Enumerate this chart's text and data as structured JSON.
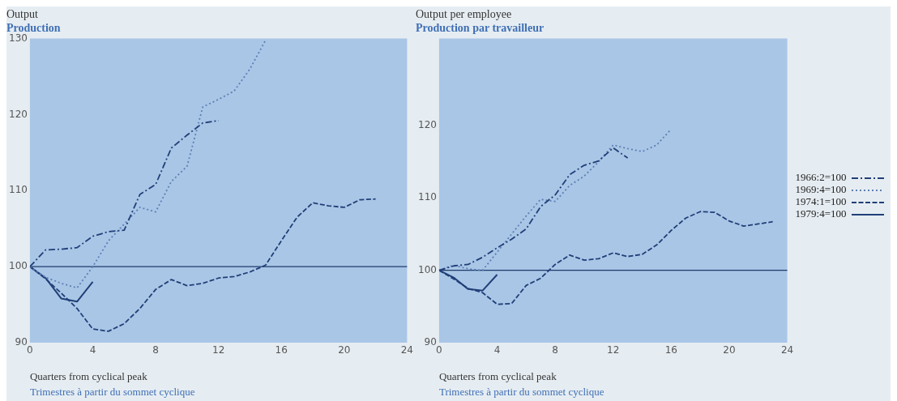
{
  "chart_data": [
    {
      "type": "line",
      "title": "Output",
      "subtitle": "Production",
      "xlabel": "Quarters from cyclical peak",
      "annotations": [
        "Trimestres à partir du sommet cyclique"
      ],
      "xlim": [
        0,
        24
      ],
      "xticks": [
        0,
        4,
        8,
        12,
        16,
        20,
        24
      ],
      "ylim": [
        90,
        130
      ],
      "yticks": [
        90,
        100,
        110,
        120,
        130
      ],
      "ref_lines": [
        {
          "axis": "y",
          "value": 100,
          "color": "#1f3a6b"
        }
      ],
      "legend": false,
      "series": [
        {
          "color": "#213f78",
          "line_style": "dashdot",
          "x": [
            0,
            1,
            2,
            3,
            4,
            5,
            6,
            7,
            8,
            9,
            10,
            11,
            12
          ],
          "values": [
            100,
            102.2,
            102.3,
            102.5,
            104,
            104.6,
            104.8,
            109.5,
            110.8,
            115.6,
            117.3,
            118.9,
            119.2
          ]
        },
        {
          "color": "#5d7fb5",
          "line_style": "dotted",
          "x": [
            0,
            1,
            2,
            3,
            4,
            5,
            6,
            7,
            8,
            9,
            10,
            11,
            12,
            13,
            14,
            15
          ],
          "values": [
            100,
            98.6,
            97.8,
            97.2,
            100,
            103.4,
            105.6,
            107.8,
            107.2,
            111.2,
            113.2,
            121,
            122,
            123.1,
            126,
            129.8
          ]
        },
        {
          "color": "#213f78",
          "line_style": "dashed",
          "x": [
            0,
            1,
            2,
            3,
            4,
            5,
            6,
            7,
            8,
            9,
            10,
            11,
            12,
            13,
            14,
            15,
            16,
            17,
            18,
            19,
            20,
            21,
            22
          ],
          "values": [
            100,
            98.4,
            96.5,
            94.5,
            91.8,
            91.5,
            92.5,
            94.5,
            97,
            98.3,
            97.5,
            97.8,
            98.5,
            98.7,
            99.3,
            100.2,
            103.4,
            106.5,
            108.4,
            108,
            107.8,
            108.8,
            108.9
          ]
        },
        {
          "color": "#213f78",
          "line_style": "solid",
          "x": [
            0,
            1,
            2,
            3,
            4
          ],
          "values": [
            100,
            98.5,
            95.8,
            95.4,
            98
          ]
        }
      ]
    },
    {
      "type": "line",
      "title": "Output per employee",
      "subtitle": "Production par travailleur",
      "xlabel": "Quarters from cyclical peak",
      "annotations": [
        "Trimestres à partir du sommet cyclique"
      ],
      "xlim": [
        0,
        24
      ],
      "xticks": [
        0,
        4,
        8,
        12,
        16,
        20,
        24
      ],
      "ylim": [
        90,
        132
      ],
      "yticks": [
        90,
        100,
        110,
        120
      ],
      "ref_lines": [
        {
          "axis": "y",
          "value": 100,
          "color": "#1f3a6b"
        }
      ],
      "legend": "right",
      "series": [
        {
          "name": "1966:2=100",
          "color": "#213f78",
          "line_style": "dashdot",
          "x": [
            0,
            1,
            2,
            3,
            4,
            5,
            6,
            7,
            8,
            9,
            10,
            11,
            12,
            13
          ],
          "values": [
            100,
            100.6,
            100.8,
            101.8,
            103.1,
            104.3,
            105.7,
            108.8,
            110.4,
            113.2,
            114.5,
            115.1,
            116.9,
            115.5
          ]
        },
        {
          "name": "1969:4=100",
          "color": "#5d7fb5",
          "line_style": "dotted",
          "x": [
            0,
            1,
            2,
            3,
            4,
            5,
            6,
            7,
            8,
            9,
            10,
            11,
            12,
            13,
            14,
            15,
            16
          ],
          "values": [
            100,
            100.7,
            100.2,
            100,
            102.5,
            105,
            107.5,
            109.8,
            109.5,
            111.7,
            113,
            115,
            117.3,
            116.8,
            116.4,
            117.3,
            119.5
          ]
        },
        {
          "name": "1974:1=100",
          "color": "#213f78",
          "line_style": "dashed",
          "x": [
            0,
            1,
            2,
            3,
            4,
            5,
            6,
            7,
            8,
            9,
            10,
            11,
            12,
            13,
            14,
            15,
            16,
            17,
            18,
            19,
            20,
            21,
            22,
            23
          ],
          "values": [
            100,
            98.8,
            97.5,
            96.9,
            95.3,
            95.4,
            97.9,
            98.9,
            100.8,
            102.1,
            101.4,
            101.6,
            102.4,
            101.9,
            102.2,
            103.5,
            105.5,
            107.2,
            108.1,
            108,
            106.8,
            106.1,
            106.4,
            106.7
          ]
        },
        {
          "name": "1979:4=100",
          "color": "#213f78",
          "line_style": "solid",
          "x": [
            0,
            1,
            2,
            3,
            4
          ],
          "values": [
            100,
            99,
            97.4,
            97.2,
            99.4
          ]
        }
      ]
    }
  ]
}
